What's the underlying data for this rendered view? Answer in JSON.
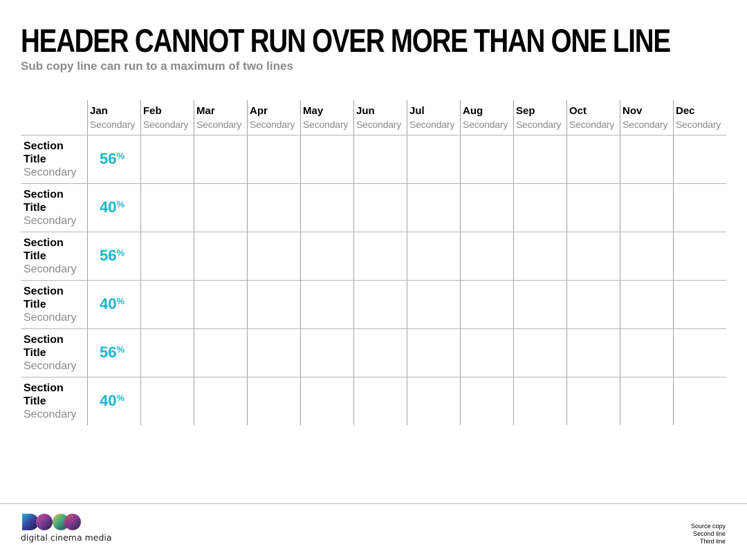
{
  "header": {
    "title": "HEADER CANNOT RUN OVER MORE THAN ONE LINE",
    "subcopy": "Sub copy line can run to a maximum of two lines"
  },
  "table": {
    "months": [
      {
        "name": "Jan",
        "secondary": "Secondary"
      },
      {
        "name": "Feb",
        "secondary": "Secondary"
      },
      {
        "name": "Mar",
        "secondary": "Secondary"
      },
      {
        "name": "Apr",
        "secondary": "Secondary"
      },
      {
        "name": "May",
        "secondary": "Secondary"
      },
      {
        "name": "Jun",
        "secondary": "Secondary"
      },
      {
        "name": "Jul",
        "secondary": "Secondary"
      },
      {
        "name": "Aug",
        "secondary": "Secondary"
      },
      {
        "name": "Sep",
        "secondary": "Secondary"
      },
      {
        "name": "Oct",
        "secondary": "Secondary"
      },
      {
        "name": "Nov",
        "secondary": "Secondary"
      },
      {
        "name": "Dec",
        "secondary": "Secondary"
      }
    ],
    "rows": [
      {
        "title": "Section Title",
        "secondary": "Secondary",
        "value": "56",
        "unit": "%"
      },
      {
        "title": "Section Title",
        "secondary": "Secondary",
        "value": "40",
        "unit": "%"
      },
      {
        "title": "Section Title",
        "secondary": "Secondary",
        "value": "56",
        "unit": "%"
      },
      {
        "title": "Section Title",
        "secondary": "Secondary",
        "value": "40",
        "unit": "%"
      },
      {
        "title": "Section Title",
        "secondary": "Secondary",
        "value": "56",
        "unit": "%"
      },
      {
        "title": "Section Title",
        "secondary": "Secondary",
        "value": "40",
        "unit": "%"
      }
    ],
    "accent_color": "#19b6cc"
  },
  "footer": {
    "logo_text": "digital cinema media",
    "source_lines": [
      "Source copy",
      "Second line",
      "Third line"
    ]
  }
}
